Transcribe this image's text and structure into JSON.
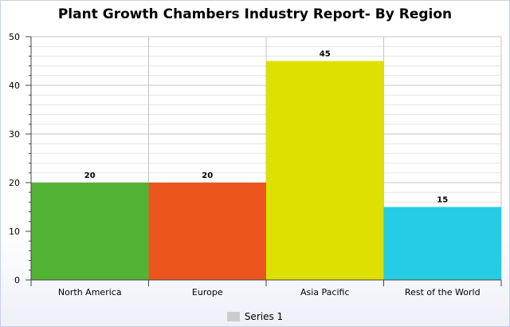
{
  "chart_data": {
    "type": "bar",
    "title": "Plant Growth Chambers Industry Report- By Region",
    "categories": [
      "North America",
      "Europe",
      "Asia Pacific",
      "Rest of the World"
    ],
    "values": [
      20,
      20,
      45,
      15
    ],
    "colors": [
      "#53b335",
      "#ec551e",
      "#dde000",
      "#26cce3"
    ],
    "ylim": [
      0,
      50
    ],
    "yticks": [
      0,
      10,
      20,
      30,
      40,
      50
    ],
    "grid": true,
    "legend": {
      "position": "bottom",
      "entries": [
        "Series 1"
      ],
      "swatch_color": "#cccccc"
    },
    "data_labels": true
  }
}
